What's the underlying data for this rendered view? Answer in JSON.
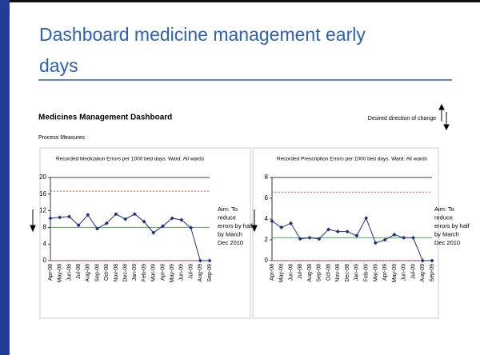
{
  "title_lines": [
    "Dashboard medicine management  early",
    "days"
  ],
  "dashboard_title": "Medicines Management Dashboard",
  "section_label": "Process Measures",
  "direction_label": "Desired direction of change",
  "chart_data": [
    {
      "type": "line",
      "title": "Recorded Medication Errors per 1000 bed days. Ward: All wards",
      "categories": [
        "Apr-08",
        "May-08",
        "Jun-08",
        "Jul-08",
        "Aug-08",
        "Sep-08",
        "Oct-08",
        "Nov-08",
        "Dec-08",
        "Jan-09",
        "Feb-09",
        "Mar-09",
        "Apr-09",
        "May-09",
        "Jun-09",
        "Jul-09",
        "Aug-09",
        "Sep-09"
      ],
      "series": [
        {
          "color": "#1f2f8f",
          "values": [
            10.2,
            10.4,
            10.6,
            8.5,
            11,
            7.7,
            9,
            11.2,
            10,
            11.2,
            9.4,
            6.7,
            8.3,
            10.2,
            9.8,
            7.9,
            0,
            0
          ]
        }
      ],
      "upper_limit": 16.7,
      "center_line": 8,
      "lower_limit": 0,
      "ylim": [
        0,
        20
      ],
      "yticks": [
        0,
        4,
        8,
        12,
        16,
        20
      ],
      "annotation": [
        "Aim: To",
        "reduce",
        "errors by half",
        "by March",
        "Dec 2010"
      ]
    },
    {
      "type": "line",
      "title": "Recorded Prescription Errors per 1000 bed days. Ward: All wards",
      "categories": [
        "Apr-08",
        "May-08",
        "Jun-08",
        "Jul-08",
        "Aug-08",
        "Sep-08",
        "Oct-08",
        "Nov-08",
        "Dec-08",
        "Jan-09",
        "Feb-09",
        "Mar-09",
        "Apr-09",
        "May-09",
        "Jun-09",
        "Jul-09",
        "Aug-09",
        "Sep-09"
      ],
      "series": [
        {
          "color": "#1f2f8f",
          "values": [
            3.8,
            3.2,
            3.6,
            2.1,
            2.2,
            2.1,
            3,
            2.8,
            2.8,
            2.4,
            4.1,
            1.7,
            2,
            2.5,
            2.2,
            2.2,
            0,
            0
          ]
        }
      ],
      "upper_limit": 6.6,
      "center_line": 2.2,
      "lower_limit": 0,
      "ylim": [
        0,
        8
      ],
      "yticks": [
        0,
        2,
        4,
        6,
        8
      ],
      "annotation": [
        "Aim: To",
        "reduce",
        "errors by half",
        "by March",
        "Dec 2010"
      ]
    }
  ]
}
